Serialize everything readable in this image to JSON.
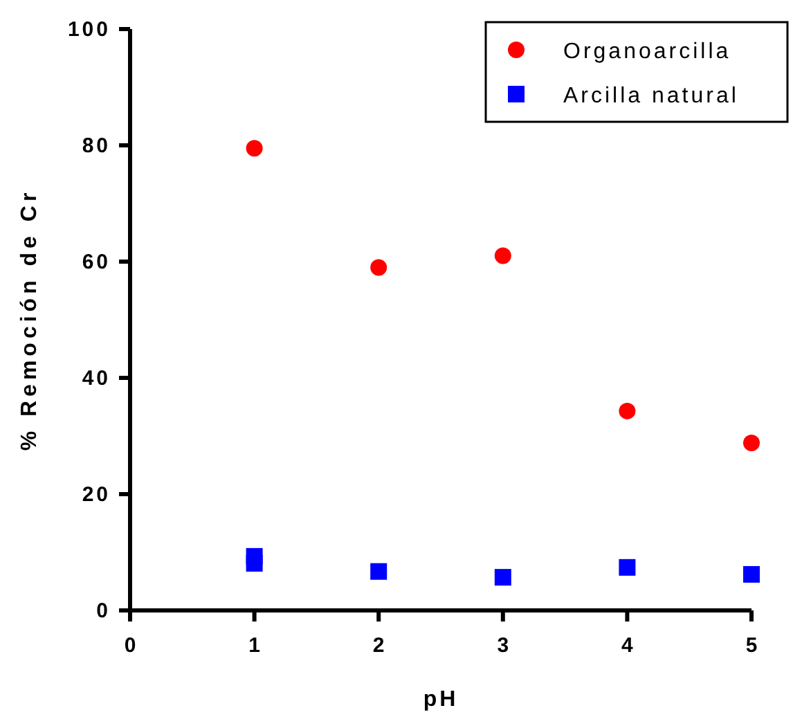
{
  "chart_data": {
    "type": "scatter",
    "xlabel": "pH",
    "ylabel": "% Remoción de Cr",
    "xlim": [
      0,
      5
    ],
    "xticks": [
      0,
      1,
      2,
      3,
      4,
      5
    ],
    "ylim": [
      0,
      100
    ],
    "yticks": [
      0,
      20,
      40,
      60,
      80,
      100
    ],
    "legend": "top right",
    "grid": false,
    "series": [
      {
        "name": "Organoarcilla",
        "color": "#ff0000",
        "marker": "circle",
        "x": [
          1,
          2,
          3,
          4,
          5
        ],
        "values": [
          79.5,
          59,
          61,
          34.3,
          28.8
        ]
      },
      {
        "name": "Arcilla natural",
        "color": "#0000ff",
        "marker": "square",
        "x": [
          1,
          1,
          2,
          3,
          4,
          5
        ],
        "values": [
          9.3,
          8.1,
          6.7,
          5.7,
          7.4,
          6.2
        ]
      }
    ]
  }
}
